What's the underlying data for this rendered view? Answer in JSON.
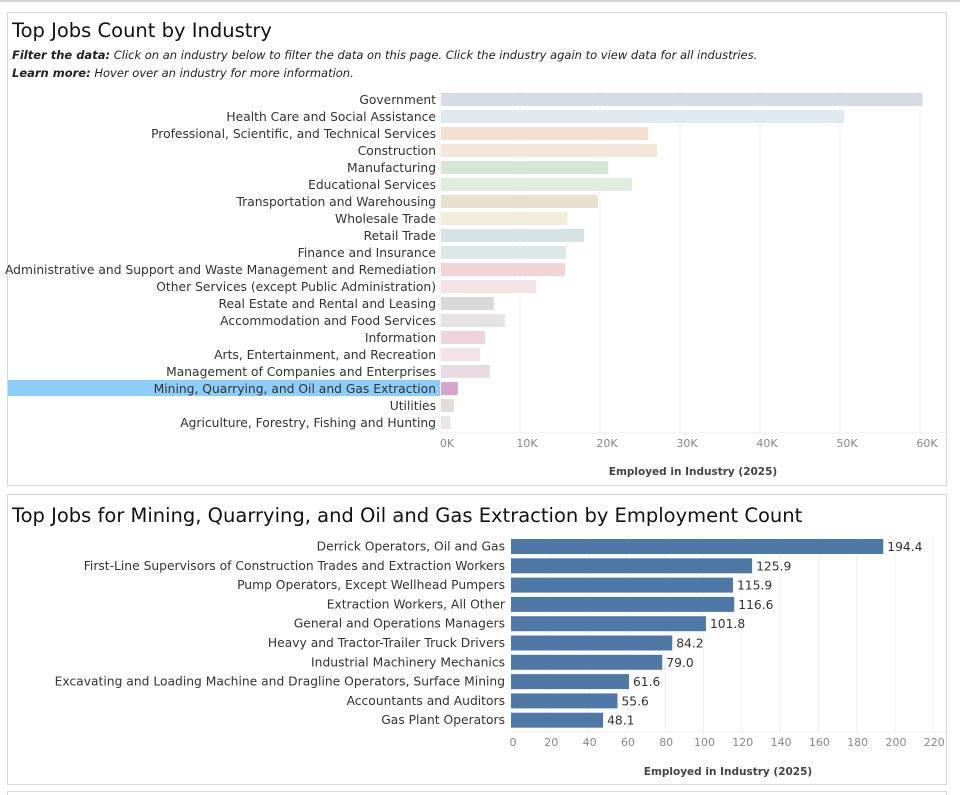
{
  "panel1": {
    "title": "Top Jobs Count by Industry",
    "filter_label": "Filter the data:",
    "filter_text": " Click on an industry below to filter the data on this page. Click the industry again to view data for all industries.",
    "learn_label": "Learn more:",
    "learn_text": " Hover over an industry for more information."
  },
  "panel2": {
    "title": "Top Jobs for Mining, Quarrying, and Oil and Gas Extraction by Employment Count"
  },
  "chart_data": [
    {
      "type": "bar",
      "orientation": "horizontal",
      "categories": [
        "Government",
        "Health Care and Social Assistance",
        "Professional, Scientific, and Technical Services",
        "Construction",
        "Manufacturing",
        "Educational Services",
        "Transportation and Warehousing",
        "Wholesale Trade",
        "Retail Trade",
        "Finance and Insurance",
        "Administrative and Support and Waste Management and Remediation",
        "Other Services (except Public Administration)",
        "Real Estate and Rental and Leasing",
        "Accommodation and Food Services",
        "Information",
        "Arts, Entertainment, and Recreation",
        "Management of Companies and Enterprises",
        "Mining, Quarrying, and Oil and Gas Extraction",
        "Utilities",
        "Agriculture, Forestry, Fishing and Hunting"
      ],
      "values": [
        60200,
        50400,
        25900,
        27000,
        20900,
        23900,
        19600,
        15800,
        17900,
        15600,
        15500,
        11900,
        6600,
        8000,
        5500,
        4900,
        6100,
        2100,
        1600,
        1200
      ],
      "colors": [
        "#d5dce6",
        "#e1e9f0",
        "#f3dfcf",
        "#f5e6da",
        "#d6e6d4",
        "#e0ecdc",
        "#e8e0cc",
        "#f4ecda",
        "#d5e3e2",
        "#dde7e5",
        "#f2d4d6",
        "#f5e2e4",
        "#dcd8da",
        "#e6e3e3",
        "#ecd3dc",
        "#f3e3e8",
        "#e8dbe3",
        "#d7a5cb",
        "#e5dcda",
        "#ece6e3"
      ],
      "highlighted": "Mining, Quarrying, and Oil and Gas Extraction",
      "highlight_color": "#8ccdf9",
      "xlabel": "Employed in Industry (2025)",
      "xticks": [
        "0K",
        "10K",
        "20K",
        "30K",
        "40K",
        "50K",
        "60K"
      ],
      "xlim": [
        0,
        63000
      ],
      "grid": true
    },
    {
      "type": "bar",
      "orientation": "horizontal",
      "categories": [
        "Derrick Operators, Oil and Gas",
        "First-Line Supervisors of Construction Trades and Extraction Workers",
        "Pump Operators, Except Wellhead Pumpers",
        "Extraction Workers, All Other",
        "General and Operations Managers",
        "Heavy and Tractor-Trailer Truck Drivers",
        "Industrial Machinery Mechanics",
        "Excavating and Loading Machine and Dragline Operators, Surface Mining",
        "Accountants and Auditors",
        "Gas Plant Operators"
      ],
      "values": [
        194.4,
        125.9,
        115.9,
        116.6,
        101.8,
        84.2,
        79.0,
        61.6,
        55.6,
        48.1
      ],
      "labels": [
        "194.4",
        "125.9",
        "115.9",
        "116.6",
        "101.8",
        "84.2",
        "79.0",
        "61.6",
        "55.6",
        "48.1"
      ],
      "color": "#4e79a7",
      "xlabel": "Employed in Industry (2025)",
      "xticks": [
        "0",
        "20",
        "40",
        "60",
        "80",
        "100",
        "120",
        "140",
        "160",
        "180",
        "200",
        "220"
      ],
      "xlim": [
        0,
        226
      ],
      "grid": true
    }
  ]
}
